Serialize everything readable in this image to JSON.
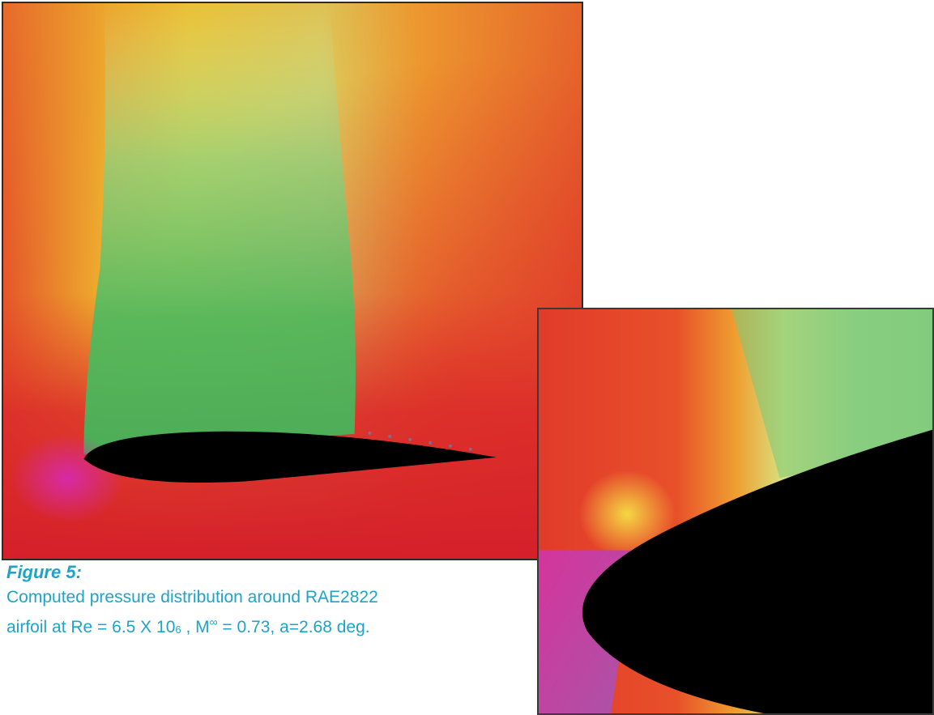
{
  "figure": {
    "label": "Figure 5:",
    "caption_line1": "Computed pressure distribution around RAE2822",
    "caption_line2": {
      "prefix": "airfoil at  Re = 6.5 X 10",
      "re_exponent": "6",
      "mid": " ,  M",
      "mach_sup": "∞",
      "suffix": " = 0.73,   a=2.68 deg."
    }
  },
  "colors": {
    "caption": "#1fa3c8",
    "high_pressure": "#d81e28",
    "low_pressure": "#4cb85c",
    "stagnation": "#d72aa6",
    "airfoil": "#000000"
  }
}
